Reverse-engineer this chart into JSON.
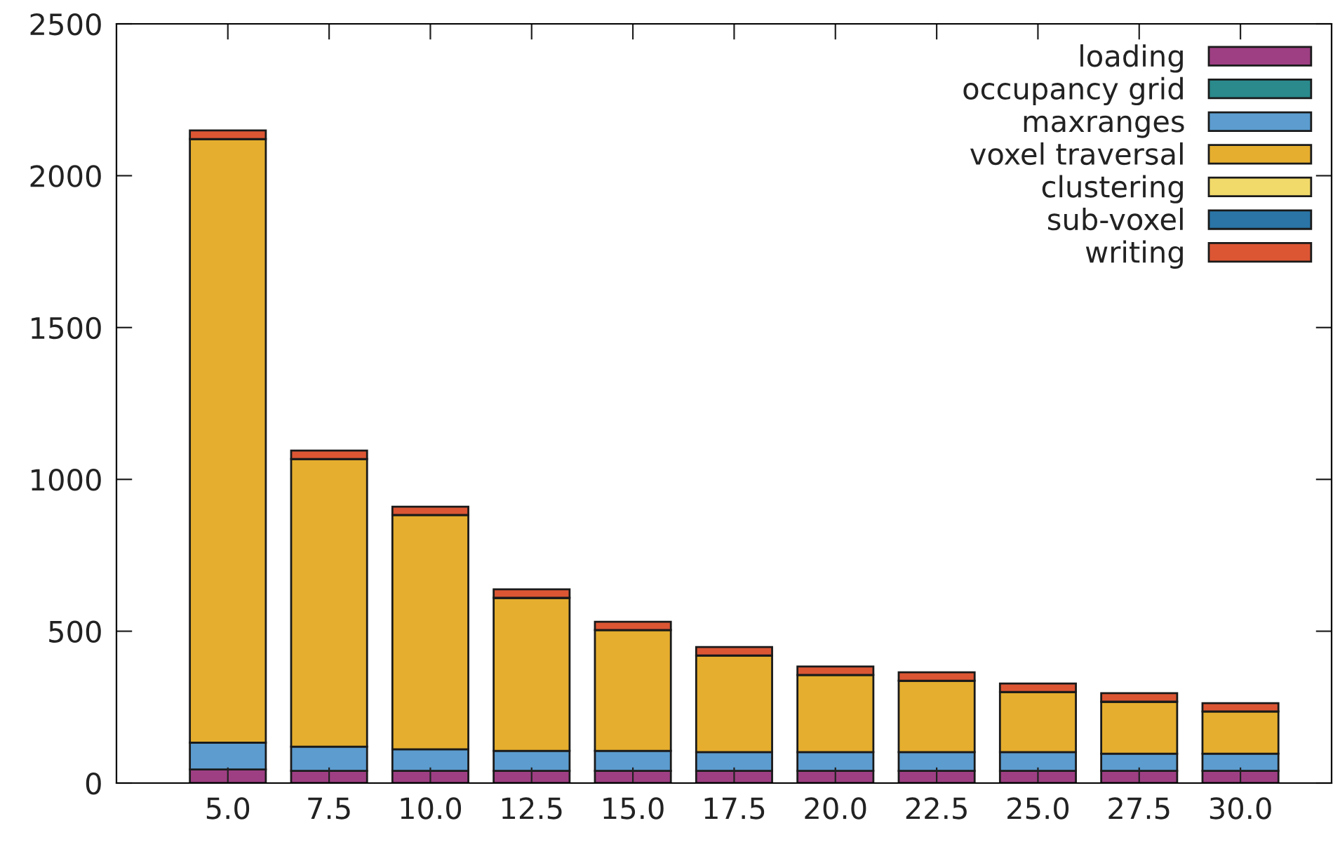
{
  "chart_data": {
    "type": "bar",
    "stacked": true,
    "categories": [
      "5.0",
      "7.5",
      "10.0",
      "12.5",
      "15.0",
      "17.5",
      "20.0",
      "22.5",
      "25.0",
      "27.5",
      "30.0"
    ],
    "series": [
      {
        "name": "loading",
        "color": "#9e3f83",
        "values": [
          45,
          40,
          40,
          40,
          40,
          40,
          40,
          40,
          40,
          40,
          40
        ]
      },
      {
        "name": "occupancy grid",
        "color": "#2a8a8c",
        "values": [
          0,
          0,
          0,
          0,
          0,
          0,
          0,
          0,
          0,
          0,
          0
        ]
      },
      {
        "name": "maxranges",
        "color": "#5c9ccf",
        "values": [
          88,
          80,
          71,
          66,
          66,
          62,
          62,
          62,
          62,
          57,
          57
        ]
      },
      {
        "name": "voxel traversal",
        "color": "#e5ae2e",
        "values": [
          1988,
          947,
          772,
          504,
          398,
          318,
          254,
          235,
          198,
          171,
          139
        ]
      },
      {
        "name": "clustering",
        "color": "#f2da6a",
        "values": [
          0,
          0,
          0,
          0,
          0,
          0,
          0,
          0,
          0,
          0,
          0
        ]
      },
      {
        "name": "sub-voxel",
        "color": "#2a75a6",
        "values": [
          0,
          0,
          0,
          0,
          0,
          0,
          0,
          0,
          0,
          0,
          0
        ]
      },
      {
        "name": "writing",
        "color": "#dc5634",
        "values": [
          28,
          28,
          27,
          28,
          27,
          28,
          28,
          28,
          28,
          28,
          27
        ]
      }
    ],
    "ylim": [
      0,
      2500
    ],
    "yticks": [
      0,
      500,
      1000,
      1500,
      2000,
      2500
    ],
    "legend": "top right"
  }
}
